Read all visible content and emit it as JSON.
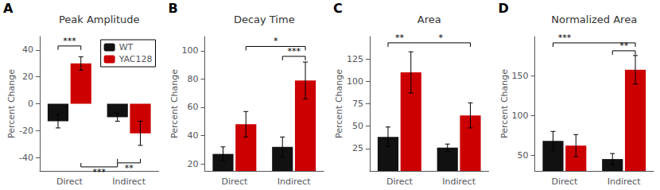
{
  "chart_data": [
    {
      "type": "bar",
      "panel": "A",
      "title": "Peak Amplitude",
      "ylabel": "Percent Change",
      "categories": [
        "Direct",
        "Indirect"
      ],
      "series": [
        {
          "name": "WT",
          "color": "#111111",
          "values": [
            -13,
            -10
          ],
          "errors": [
            5,
            3
          ]
        },
        {
          "name": "YAC128",
          "color": "#cc0000",
          "values": [
            30,
            -22
          ],
          "errors": [
            5,
            9
          ]
        }
      ],
      "ylim": [
        -50,
        50
      ],
      "yticks": [
        -40,
        -20,
        0,
        20,
        40
      ],
      "grid": false,
      "legend": "upper right",
      "brackets": [
        {
          "y": 43,
          "from": {
            "series": "WT",
            "category": "Direct"
          },
          "to": {
            "series": "YAC128",
            "category": "Direct"
          }
        },
        {
          "y": -47,
          "from": {
            "series": "YAC128",
            "category": "Direct"
          },
          "to": {
            "series": "WT",
            "category": "Indirect"
          }
        },
        {
          "y": -44,
          "from": {
            "series": "WT",
            "category": "Indirect"
          },
          "to": {
            "series": "YAC128",
            "category": "Indirect"
          }
        }
      ],
      "annotations": [
        {
          "text": "***",
          "y": 43,
          "from": {
            "series": "WT",
            "category": "Direct"
          },
          "to": {
            "series": "YAC128",
            "category": "Direct"
          }
        },
        {
          "text": "***",
          "y": -47,
          "from": {
            "series": "YAC128",
            "category": "Direct"
          },
          "to": {
            "series": "WT",
            "category": "Indirect"
          }
        },
        {
          "text": "**",
          "y": -44,
          "from": {
            "series": "WT",
            "category": "Indirect"
          },
          "to": {
            "series": "YAC128",
            "category": "Indirect"
          }
        }
      ]
    },
    {
      "type": "bar",
      "panel": "B",
      "title": "Decay Time",
      "ylabel": "Percent Change",
      "categories": [
        "Direct",
        "Indirect"
      ],
      "series": [
        {
          "name": "WT",
          "color": "#111111",
          "values": [
            27,
            32
          ],
          "errors": [
            5,
            7
          ]
        },
        {
          "name": "YAC128",
          "color": "#cc0000",
          "values": [
            48,
            79
          ],
          "errors": [
            9,
            13
          ]
        }
      ],
      "ylim": [
        15,
        110
      ],
      "yticks": [
        20,
        40,
        60,
        80,
        100
      ],
      "grid": false,
      "brackets": [
        {
          "y": 103,
          "from": {
            "series": "YAC128",
            "category": "Direct"
          },
          "to": {
            "series": "YAC128",
            "category": "Indirect"
          }
        },
        {
          "y": 96,
          "from": {
            "series": "WT",
            "category": "Indirect"
          },
          "to": {
            "series": "YAC128",
            "category": "Indirect"
          }
        }
      ],
      "annotations": [
        {
          "text": "*",
          "y": 103,
          "from": {
            "series": "YAC128",
            "category": "Direct"
          },
          "to": {
            "series": "YAC128",
            "category": "Indirect"
          }
        },
        {
          "text": "***",
          "y": 96,
          "from": {
            "series": "WT",
            "category": "Indirect"
          },
          "to": {
            "series": "YAC128",
            "category": "Indirect"
          }
        }
      ]
    },
    {
      "type": "bar",
      "panel": "C",
      "title": "Area",
      "ylabel": "Percent Change",
      "categories": [
        "Direct",
        "Indirect"
      ],
      "series": [
        {
          "name": "WT",
          "color": "#111111",
          "values": [
            38,
            26
          ],
          "errors": [
            11,
            4
          ]
        },
        {
          "name": "YAC128",
          "color": "#cc0000",
          "values": [
            110,
            62
          ],
          "errors": [
            23,
            14
          ]
        }
      ],
      "ylim": [
        0,
        150
      ],
      "yticks": [
        25,
        50,
        75,
        100,
        125
      ],
      "grid": false,
      "brackets": [
        {
          "y": 143,
          "from": {
            "series": "WT",
            "category": "Direct"
          },
          "to": {
            "series": "YAC128",
            "category": "Indirect"
          }
        }
      ],
      "annotations": [
        {
          "text": "**",
          "y": 143,
          "from": {
            "series": "WT",
            "category": "Direct"
          },
          "to": {
            "series": "YAC128",
            "category": "Direct"
          }
        },
        {
          "text": "*",
          "y": 143,
          "from": {
            "series": "YAC128",
            "category": "Direct"
          },
          "to": {
            "series": "YAC128",
            "category": "Indirect"
          }
        }
      ]
    },
    {
      "type": "bar",
      "panel": "D",
      "title": "Normalized Area",
      "ylabel": "Percent Change",
      "categories": [
        "Direct",
        "Indirect"
      ],
      "series": [
        {
          "name": "WT",
          "color": "#111111",
          "values": [
            68,
            45
          ],
          "errors": [
            12,
            7
          ]
        },
        {
          "name": "YAC128",
          "color": "#cc0000",
          "values": [
            62,
            158
          ],
          "errors": [
            14,
            18
          ]
        }
      ],
      "ylim": [
        30,
        200
      ],
      "yticks": [
        50,
        100,
        150
      ],
      "grid": false,
      "brackets": [
        {
          "y": 192,
          "from": {
            "series": "WT",
            "category": "Direct"
          },
          "to": {
            "series": "YAC128",
            "category": "Indirect"
          }
        },
        {
          "y": 182,
          "from": {
            "series": "WT",
            "category": "Indirect"
          },
          "to": {
            "series": "YAC128",
            "category": "Indirect"
          }
        }
      ],
      "annotations": [
        {
          "text": "***",
          "y": 192,
          "from": {
            "series": "WT",
            "category": "Direct"
          },
          "to": {
            "series": "YAC128",
            "category": "Direct"
          }
        },
        {
          "text": "**",
          "y": 182,
          "from": {
            "series": "WT",
            "category": "Indirect"
          },
          "to": {
            "series": "YAC128",
            "category": "Indirect"
          }
        }
      ]
    }
  ]
}
